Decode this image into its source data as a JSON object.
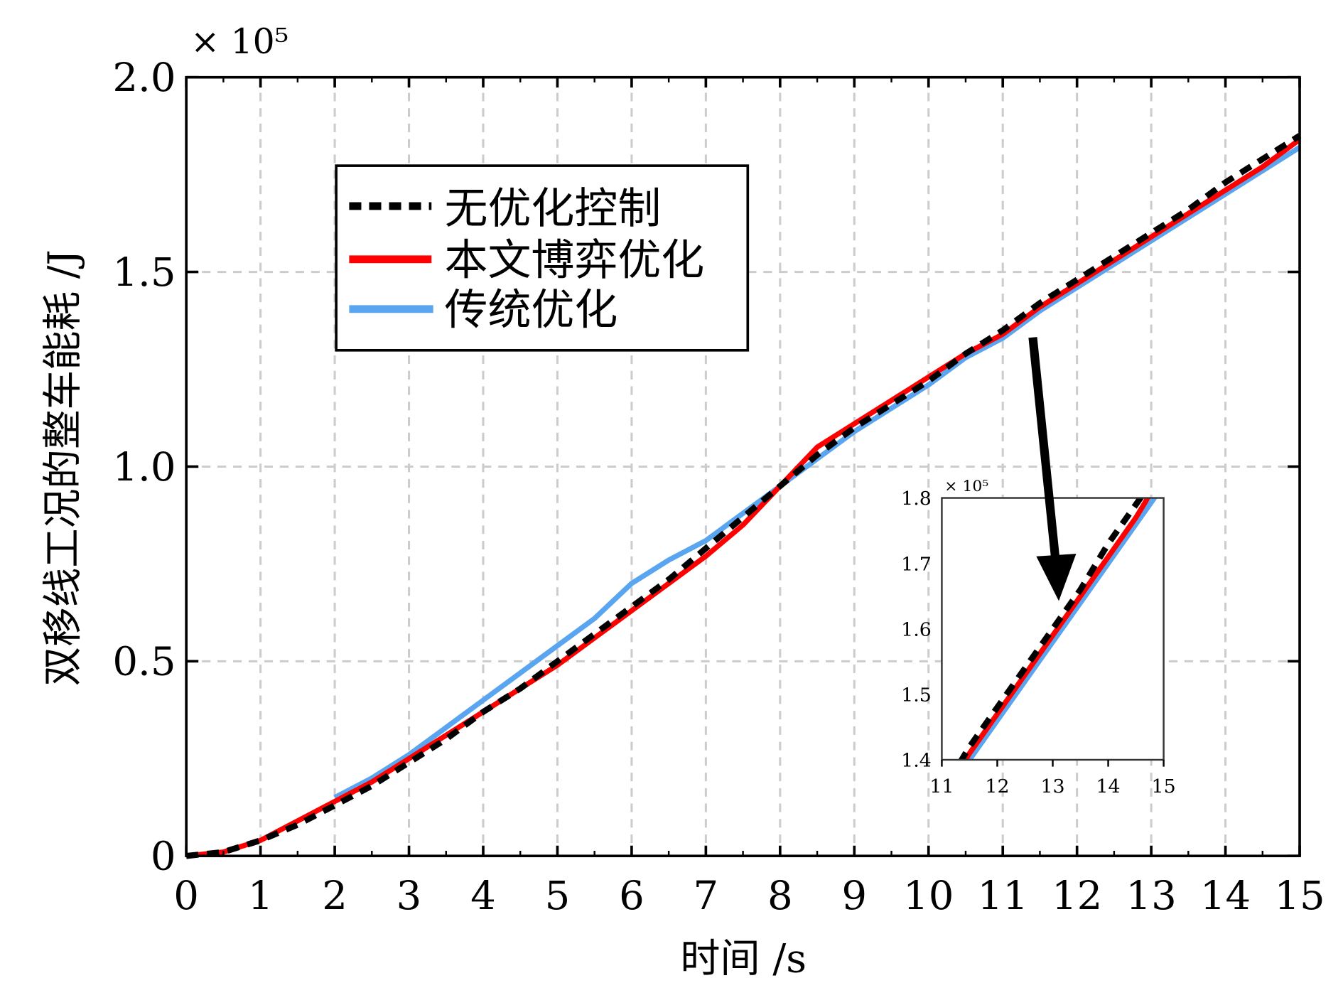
{
  "chart_data": {
    "type": "line",
    "title": "",
    "xlabel": "时间 /s",
    "ylabel": "双移线工况的整车能耗 /J",
    "y_multiplier": "× 10⁵",
    "xlim": [
      0,
      15
    ],
    "ylim": [
      0,
      2.0
    ],
    "xticks": [
      "0",
      "1",
      "2",
      "3",
      "4",
      "5",
      "6",
      "7",
      "8",
      "9",
      "10",
      "11",
      "12",
      "13",
      "14",
      "15"
    ],
    "yticks": [
      "0",
      "0.5",
      "1.0",
      "1.5",
      "2.0"
    ],
    "grid": true,
    "legend_position": "upper-left",
    "x": [
      0,
      0.5,
      1,
      1.5,
      2,
      2.5,
      3,
      3.5,
      4,
      4.5,
      5,
      5.5,
      6,
      6.5,
      7,
      7.5,
      8,
      8.5,
      9,
      9.5,
      10,
      10.5,
      11,
      11.5,
      12,
      12.5,
      13,
      13.5,
      14,
      14.5,
      15
    ],
    "series": [
      {
        "name": "无优化控制",
        "color": "#000000",
        "style": "dashed",
        "values": [
          0,
          0.01,
          0.04,
          0.08,
          0.13,
          0.18,
          0.24,
          0.3,
          0.37,
          0.43,
          0.5,
          0.57,
          0.64,
          0.71,
          0.79,
          0.87,
          0.95,
          1.03,
          1.1,
          1.16,
          1.22,
          1.29,
          1.35,
          1.42,
          1.48,
          1.54,
          1.6,
          1.66,
          1.73,
          1.79,
          1.85
        ]
      },
      {
        "name": "本文博弈优化",
        "color": "#ff0000",
        "style": "solid",
        "values": [
          0,
          0.01,
          0.04,
          0.09,
          0.14,
          0.19,
          0.25,
          0.31,
          0.37,
          0.43,
          0.49,
          0.56,
          0.63,
          0.7,
          0.77,
          0.85,
          0.95,
          1.05,
          1.11,
          1.17,
          1.23,
          1.29,
          1.34,
          1.41,
          1.47,
          1.53,
          1.59,
          1.65,
          1.71,
          1.77,
          1.84
        ]
      },
      {
        "name": "传统优化",
        "color": "#5aa5f0",
        "style": "solid",
        "values": [
          null,
          null,
          null,
          null,
          0.15,
          0.2,
          0.26,
          0.33,
          0.4,
          0.47,
          0.54,
          0.61,
          0.7,
          0.76,
          0.81,
          0.88,
          0.95,
          1.02,
          1.09,
          1.15,
          1.21,
          1.28,
          1.33,
          1.4,
          1.46,
          1.52,
          1.58,
          1.64,
          1.7,
          1.76,
          1.82
        ]
      }
    ],
    "inset": {
      "xlim": [
        11,
        15
      ],
      "ylim": [
        1.4,
        1.8
      ],
      "xticks": [
        "11",
        "12",
        "13",
        "14",
        "15"
      ],
      "yticks": [
        "1.4",
        "1.5",
        "1.6",
        "1.7",
        "1.8"
      ],
      "y_multiplier": "× 10⁵",
      "annotation": "arrow pointing from main curve at t≈11.5 to inset"
    }
  }
}
